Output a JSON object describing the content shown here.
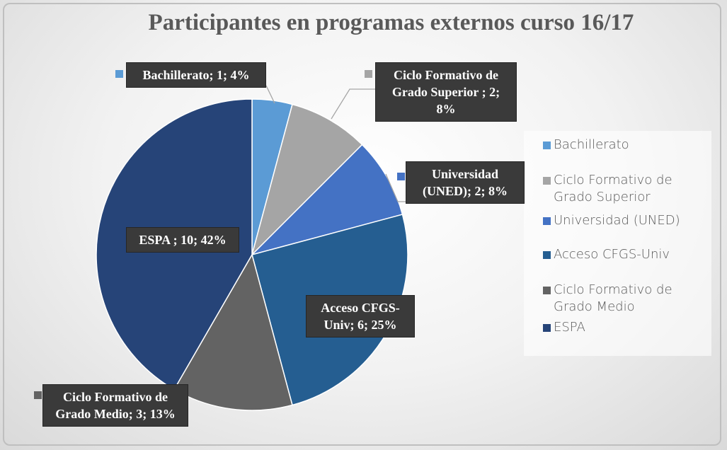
{
  "chart_data": {
    "type": "pie",
    "title": "Participantes en programas externos curso 16/17",
    "categories": [
      "Bachillerato",
      "Ciclo Formativo de Grado Superior",
      "Universidad (UNED)",
      "Acceso CFGS-Univ",
      "Ciclo Formativo de Grado Medio",
      "ESPA"
    ],
    "values": [
      1,
      2,
      2,
      6,
      3,
      10
    ],
    "value_labels": [
      "Bachillerato; 1; 4%",
      "Ciclo Formativo de Grado Superior ; 2; 8%",
      "Universidad (UNED); 2; 8%",
      "Acceso CFGS-Univ; 6; 25%",
      "Ciclo Formativo de Grado Medio; 3; 13%",
      "ESPA ; 10; 42%"
    ],
    "colors": [
      "#5b9bd5",
      "#a5a5a5",
      "#4472c4",
      "#255e91",
      "#636363",
      "#264478"
    ],
    "legend": "right"
  }
}
